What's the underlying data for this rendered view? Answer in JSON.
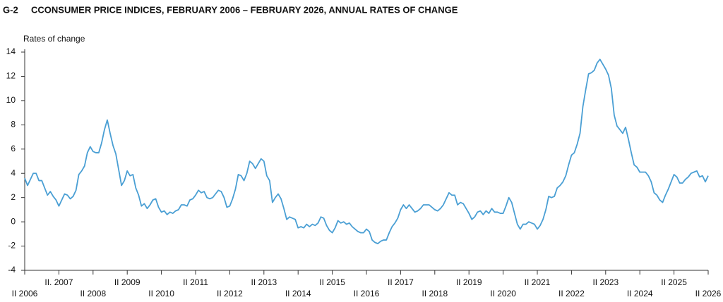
{
  "chart_data": {
    "type": "line",
    "label": "G-2",
    "title": "CCONSUMER PRICE INDICES, FEBRUARY 2006 – FEBRUARY 2026, ANNUAL RATES OF CHANGE",
    "y_label": "Rates of change",
    "color": "#4a9fd4",
    "ylim": [
      -4,
      14
    ],
    "yticks": [
      -4,
      -2,
      0,
      2,
      4,
      6,
      8,
      10,
      12,
      14
    ],
    "grid": false,
    "categories": [
      "II 2006",
      null,
      null,
      null,
      null,
      null,
      null,
      null,
      null,
      null,
      null,
      null,
      "II. 2007",
      null,
      null,
      null,
      null,
      null,
      null,
      null,
      null,
      null,
      null,
      null,
      "II 2008",
      null,
      null,
      null,
      null,
      null,
      null,
      null,
      null,
      null,
      null,
      null,
      "II 2009",
      null,
      null,
      null,
      null,
      null,
      null,
      null,
      null,
      null,
      null,
      null,
      "II 2010",
      null,
      null,
      null,
      null,
      null,
      null,
      null,
      null,
      null,
      null,
      null,
      "II 2011",
      null,
      null,
      null,
      null,
      null,
      null,
      null,
      null,
      null,
      null,
      null,
      "II 2012",
      null,
      null,
      null,
      null,
      null,
      null,
      null,
      null,
      null,
      null,
      null,
      "II 2013",
      null,
      null,
      null,
      null,
      null,
      null,
      null,
      null,
      null,
      null,
      null,
      "II 2014",
      null,
      null,
      null,
      null,
      null,
      null,
      null,
      null,
      null,
      null,
      null,
      "II 2015",
      null,
      null,
      null,
      null,
      null,
      null,
      null,
      null,
      null,
      null,
      null,
      "II 2016",
      null,
      null,
      null,
      null,
      null,
      null,
      null,
      null,
      null,
      null,
      null,
      "II 2017",
      null,
      null,
      null,
      null,
      null,
      null,
      null,
      null,
      null,
      null,
      null,
      "II 2018",
      null,
      null,
      null,
      null,
      null,
      null,
      null,
      null,
      null,
      null,
      null,
      "II 2019",
      null,
      null,
      null,
      null,
      null,
      null,
      null,
      null,
      null,
      null,
      null,
      "II 2020",
      null,
      null,
      null,
      null,
      null,
      null,
      null,
      null,
      null,
      null,
      null,
      "II 2021",
      null,
      null,
      null,
      null,
      null,
      null,
      null,
      null,
      null,
      null,
      null,
      "II 2022",
      null,
      null,
      null,
      null,
      null,
      null,
      null,
      null,
      null,
      null,
      null,
      "II 2023",
      null,
      null,
      null,
      null,
      null,
      null,
      null,
      null,
      null,
      null,
      null,
      "II 2024",
      null,
      null,
      null,
      null,
      null,
      null,
      null,
      null,
      null,
      null,
      null,
      "II 2025",
      null,
      null,
      null,
      null,
      null,
      null,
      null,
      null,
      null,
      null,
      null,
      "II 2026"
    ],
    "values": [
      3.6,
      3.0,
      3.5,
      4.0,
      4.0,
      3.4,
      3.4,
      2.8,
      2.2,
      2.5,
      2.1,
      1.8,
      1.3,
      1.8,
      2.3,
      2.2,
      1.9,
      2.1,
      2.6,
      3.9,
      4.2,
      4.6,
      5.7,
      6.2,
      5.8,
      5.7,
      5.7,
      6.5,
      7.6,
      8.4,
      7.3,
      6.3,
      5.6,
      4.3,
      3.0,
      3.4,
      4.2,
      3.8,
      3.9,
      2.8,
      2.2,
      1.3,
      1.5,
      1.1,
      1.4,
      1.8,
      1.9,
      1.2,
      0.8,
      0.9,
      0.6,
      0.8,
      0.7,
      0.9,
      1.0,
      1.4,
      1.4,
      1.3,
      1.8,
      1.9,
      2.2,
      2.6,
      2.4,
      2.5,
      2.0,
      1.9,
      2.0,
      2.3,
      2.6,
      2.5,
      2.0,
      1.2,
      1.3,
      1.9,
      2.7,
      3.9,
      3.8,
      3.4,
      4.0,
      5.0,
      4.8,
      4.4,
      4.8,
      5.2,
      5.0,
      3.8,
      3.4,
      1.6,
      2.0,
      2.3,
      1.9,
      1.1,
      0.2,
      0.4,
      0.3,
      0.2,
      -0.5,
      -0.4,
      -0.5,
      -0.2,
      -0.4,
      -0.2,
      -0.3,
      -0.1,
      0.4,
      0.3,
      -0.3,
      -0.7,
      -0.9,
      -0.5,
      0.1,
      -0.1,
      0.0,
      -0.2,
      -0.1,
      -0.4,
      -0.6,
      -0.8,
      -0.9,
      -0.9,
      -0.6,
      -0.8,
      -1.5,
      -1.7,
      -1.8,
      -1.6,
      -1.5,
      -1.5,
      -0.9,
      -0.4,
      -0.1,
      0.3,
      1.0,
      1.4,
      1.1,
      1.4,
      1.1,
      0.8,
      0.9,
      1.1,
      1.4,
      1.4,
      1.4,
      1.2,
      1.0,
      0.9,
      1.1,
      1.4,
      1.9,
      2.4,
      2.2,
      2.2,
      1.4,
      1.6,
      1.5,
      1.1,
      0.7,
      0.2,
      0.4,
      0.8,
      0.9,
      0.6,
      0.9,
      0.7,
      1.1,
      0.8,
      0.8,
      0.7,
      0.7,
      1.3,
      2.0,
      1.6,
      0.7,
      -0.2,
      -0.6,
      -0.2,
      -0.2,
      0.0,
      -0.1,
      -0.2,
      -0.6,
      -0.3,
      0.2,
      1.0,
      2.1,
      2.0,
      2.1,
      2.8,
      3.0,
      3.3,
      3.8,
      4.7,
      5.5,
      5.7,
      6.4,
      7.3,
      9.5,
      10.9,
      12.2,
      12.3,
      12.5,
      13.1,
      13.4,
      13.0,
      12.6,
      12.1,
      11.0,
      8.8,
      7.9,
      7.6,
      7.3,
      7.8,
      6.8,
      5.7,
      4.7,
      4.5,
      4.1,
      4.1,
      4.1,
      3.8,
      3.3,
      2.4,
      2.2,
      1.8,
      1.6,
      2.2,
      2.7,
      3.3,
      3.9,
      3.7,
      3.2,
      3.2,
      3.5,
      3.7,
      4.0,
      4.1,
      4.2,
      3.7,
      3.8,
      3.3,
      3.8
    ]
  }
}
